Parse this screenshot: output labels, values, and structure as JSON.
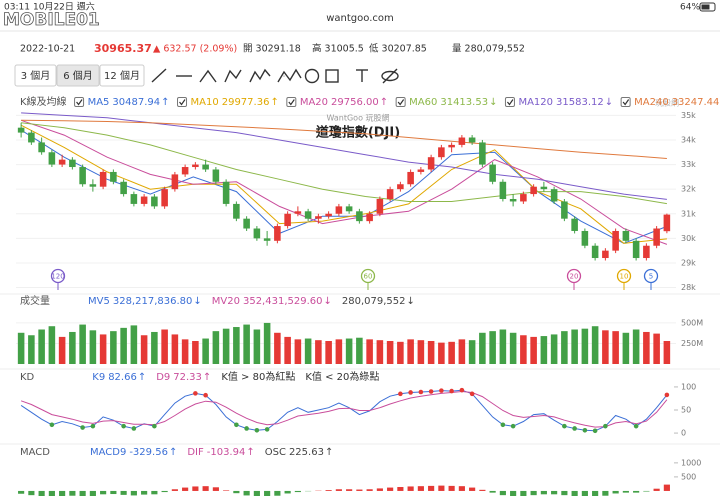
{
  "status_bar": {
    "time": "03:11",
    "date": "10月22日 週六",
    "url": "wantgoo.com",
    "battery": "64%",
    "watermark": "MOBILE01"
  },
  "quote": {
    "date": "2022-10-21",
    "price": "30965.37",
    "change": "▲ 632.57 (2.09%)",
    "open": "開 30291.18",
    "high": "高 31005.5",
    "low": "低 30207.85",
    "volume": "量 280,079,552"
  },
  "tabs": [
    "3 個月",
    "6 個月",
    "12 個月"
  ],
  "chart_data": [
    {
      "type": "candlestick",
      "title": "道瓊指數(DJI)",
      "watermark": "WantGoo 玩股網",
      "logo_text": "玩股網",
      "legend_title": "K線及均線",
      "up_color": "#e53935",
      "down_color": "#43a047",
      "ylim": [
        27900,
        35300
      ],
      "yticks": [
        {
          "value": 35000,
          "label": "35k"
        },
        {
          "value": 34000,
          "label": "34k"
        },
        {
          "value": 33000,
          "label": "33k"
        },
        {
          "value": 32000,
          "label": "32k"
        },
        {
          "value": 31000,
          "label": "31k"
        },
        {
          "value": 30000,
          "label": "30k"
        },
        {
          "value": 29000,
          "label": "29k"
        },
        {
          "value": 28000,
          "label": "28k"
        }
      ],
      "grid": true,
      "candles": [
        [
          34500,
          34700,
          34100,
          34300
        ],
        [
          34300,
          34400,
          33800,
          33900
        ],
        [
          33900,
          34100,
          33400,
          33500
        ],
        [
          33500,
          33600,
          32900,
          33000
        ],
        [
          33000,
          33400,
          32900,
          33200
        ],
        [
          33200,
          33300,
          32800,
          32900
        ],
        [
          32900,
          33000,
          32100,
          32200
        ],
        [
          32200,
          32400,
          31900,
          32100
        ],
        [
          32100,
          32800,
          32000,
          32700
        ],
        [
          32700,
          32800,
          32200,
          32300
        ],
        [
          32300,
          32400,
          31700,
          31800
        ],
        [
          31800,
          31900,
          31300,
          31400
        ],
        [
          31400,
          31800,
          31300,
          31700
        ],
        [
          31700,
          31800,
          31200,
          31300
        ],
        [
          31300,
          32100,
          31200,
          32000
        ],
        [
          32000,
          32700,
          31900,
          32600
        ],
        [
          32600,
          33000,
          32500,
          32900
        ],
        [
          32900,
          33100,
          32800,
          33000
        ],
        [
          33000,
          33200,
          32700,
          32800
        ],
        [
          32800,
          32900,
          32200,
          32300
        ],
        [
          32300,
          32400,
          31300,
          31400
        ],
        [
          31400,
          31500,
          30700,
          30800
        ],
        [
          30800,
          30900,
          30300,
          30400
        ],
        [
          30400,
          30500,
          29900,
          30000
        ],
        [
          30000,
          30300,
          29700,
          29900
        ],
        [
          29900,
          30600,
          29800,
          30500
        ],
        [
          30500,
          31100,
          30400,
          31000
        ],
        [
          31000,
          31300,
          30900,
          31100
        ],
        [
          31100,
          31200,
          30700,
          30800
        ],
        [
          30800,
          31000,
          30600,
          30900
        ],
        [
          30900,
          31100,
          30800,
          31000
        ],
        [
          31000,
          31400,
          30900,
          31300
        ],
        [
          31300,
          31400,
          31000,
          31100
        ],
        [
          31100,
          31200,
          30600,
          30700
        ],
        [
          30700,
          31100,
          30600,
          31000
        ],
        [
          31000,
          31700,
          30900,
          31600
        ],
        [
          31600,
          32100,
          31500,
          32000
        ],
        [
          32000,
          32300,
          31900,
          32200
        ],
        [
          32200,
          32800,
          32100,
          32700
        ],
        [
          32700,
          32900,
          32600,
          32800
        ],
        [
          32800,
          33400,
          32700,
          33300
        ],
        [
          33300,
          33800,
          33200,
          33700
        ],
        [
          33700,
          33900,
          33500,
          33800
        ],
        [
          33800,
          34200,
          33700,
          34100
        ],
        [
          34100,
          34200,
          33800,
          33900
        ],
        [
          33900,
          34000,
          32900,
          33000
        ],
        [
          33000,
          33100,
          32200,
          32300
        ],
        [
          32300,
          32400,
          31500,
          31600
        ],
        [
          31600,
          31800,
          31300,
          31500
        ],
        [
          31500,
          31900,
          31400,
          31800
        ],
        [
          31800,
          32200,
          31700,
          32100
        ],
        [
          32100,
          32300,
          31900,
          32000
        ],
        [
          32000,
          32100,
          31400,
          31500
        ],
        [
          31500,
          31600,
          30700,
          30800
        ],
        [
          30800,
          30900,
          30200,
          30300
        ],
        [
          30300,
          30400,
          29600,
          29700
        ],
        [
          29700,
          29800,
          29100,
          29200
        ],
        [
          29200,
          29600,
          29100,
          29500
        ],
        [
          29500,
          30400,
          29400,
          30300
        ],
        [
          30300,
          30400,
          29800,
          29900
        ],
        [
          29900,
          30000,
          29100,
          29200
        ],
        [
          29200,
          29800,
          29100,
          29700
        ],
        [
          29700,
          30500,
          29600,
          30400
        ],
        [
          30291.18,
          31005.5,
          30207.85,
          30965.37
        ]
      ],
      "series": [
        {
          "name": "MA5",
          "color": "#3b6fd6",
          "legend_value": "30487.94",
          "trend": "↑",
          "values": [
            34400,
            33300,
            32400,
            31800,
            32500,
            31900,
            30200,
            30900,
            30900,
            31900,
            33400,
            33500,
            31900,
            30700,
            29800,
            30487.94
          ]
        },
        {
          "name": "MA10",
          "color": "#e0a800",
          "legend_value": "29977.36",
          "trend": "↑",
          "values": [
            34600,
            33700,
            32700,
            32000,
            32200,
            32200,
            30600,
            30700,
            31000,
            31400,
            32800,
            33600,
            31900,
            31200,
            29800,
            29977.36
          ]
        },
        {
          "name": "MA20",
          "color": "#c94d9b",
          "legend_value": "29756.00",
          "trend": "↑",
          "values": [
            34800,
            34200,
            33300,
            32600,
            32200,
            32300,
            31300,
            30600,
            30900,
            31100,
            32000,
            33200,
            32500,
            31600,
            30400,
            29756
          ]
        },
        {
          "name": "MA60",
          "color": "#8db84a",
          "legend_value": "31413.53",
          "trend": "↓",
          "values": [
            34700,
            34500,
            34200,
            33800,
            33300,
            32800,
            32400,
            32000,
            31700,
            31500,
            31500,
            31700,
            31900,
            31900,
            31700,
            31413.53
          ]
        },
        {
          "name": "MA120",
          "color": "#7a5bc9",
          "legend_value": "31583.12",
          "trend": "↓",
          "values": [
            35100,
            35000,
            34900,
            34700,
            34500,
            34300,
            34000,
            33700,
            33400,
            33100,
            32900,
            32600,
            32400,
            32100,
            31800,
            31583.12
          ]
        },
        {
          "name": "MA240",
          "color": "#e07a3e",
          "legend_value": "33247.44",
          "trend": "↓",
          "values": [
            34800,
            34780,
            34750,
            34700,
            34620,
            34540,
            34450,
            34350,
            34250,
            34100,
            33950,
            33800,
            33650,
            33500,
            33380,
            33247.44
          ]
        }
      ],
      "period_markers": [
        {
          "label": "120",
          "color": "#7a5bc9"
        },
        {
          "label": "60",
          "color": "#8db84a"
        },
        {
          "label": "20",
          "color": "#c94d9b"
        },
        {
          "label": "10",
          "color": "#e0a800"
        },
        {
          "label": "5",
          "color": "#3b6fd6"
        }
      ]
    },
    {
      "type": "bar",
      "title": "成交量",
      "legend": [
        {
          "name": "MV5",
          "value": "328,217,836.80",
          "trend": "↓",
          "color": "#3b6fd6"
        },
        {
          "name": "MV20",
          "value": "352,431,529.60",
          "trend": "↓",
          "color": "#c94d9b"
        },
        {
          "value": "280,079,552",
          "trend": "↓",
          "color": "#444444"
        }
      ],
      "ylim": [
        0,
        560
      ],
      "yticks": [
        {
          "value": 500,
          "label": "500M"
        },
        {
          "value": 250,
          "label": "250M"
        }
      ],
      "values": [
        380,
        350,
        420,
        460,
        330,
        390,
        480,
        410,
        360,
        400,
        440,
        470,
        350,
        390,
        420,
        360,
        300,
        280,
        310,
        400,
        430,
        450,
        480,
        420,
        500,
        380,
        330,
        300,
        310,
        290,
        280,
        300,
        310,
        320,
        300,
        290,
        280,
        270,
        300,
        290,
        280,
        260,
        270,
        300,
        290,
        380,
        400,
        420,
        380,
        350,
        330,
        340,
        360,
        400,
        420,
        430,
        460,
        410,
        400,
        380,
        420,
        390,
        370,
        280.08
      ]
    },
    {
      "type": "line",
      "title": "KD",
      "notes": [
        "K值 > 80為紅點",
        "K值 < 20為綠點"
      ],
      "thresholds": {
        "high": 80,
        "low": 20,
        "high_color": "#e53935",
        "low_color": "#43a047"
      },
      "ylim": [
        -15,
        115
      ],
      "yticks": [
        100,
        50,
        0
      ],
      "series": [
        {
          "name": "K9",
          "color": "#3b6fd6",
          "legend_value": "82.66",
          "trend": "↑",
          "values": [
            60,
            45,
            30,
            18,
            25,
            20,
            12,
            15,
            35,
            28,
            15,
            10,
            20,
            15,
            40,
            65,
            80,
            86,
            82,
            62,
            35,
            18,
            10,
            6,
            8,
            25,
            45,
            55,
            45,
            50,
            55,
            65,
            55,
            40,
            48,
            68,
            80,
            85,
            88,
            89,
            90,
            92,
            91,
            93,
            85,
            60,
            35,
            18,
            15,
            25,
            40,
            42,
            28,
            15,
            10,
            6,
            5,
            15,
            38,
            30,
            15,
            30,
            55,
            82.66
          ]
        },
        {
          "name": "D9",
          "color": "#c94d9b",
          "legend_value": "72.33",
          "trend": "↑",
          "values": [
            70,
            62,
            51,
            40,
            35,
            30,
            24,
            21,
            26,
            27,
            23,
            19,
            19,
            18,
            25,
            38,
            52,
            63,
            69,
            67,
            56,
            43,
            32,
            23,
            18,
            20,
            28,
            37,
            40,
            43,
            47,
            53,
            54,
            49,
            49,
            55,
            63,
            70,
            76,
            80,
            83,
            86,
            88,
            90,
            88,
            79,
            64,
            49,
            38,
            34,
            36,
            38,
            35,
            28,
            22,
            17,
            13,
            14,
            22,
            25,
            20,
            26,
            45,
            72.33
          ]
        }
      ]
    },
    {
      "type": "bar",
      "title": "MACD",
      "legend": [
        {
          "name": "MACD9",
          "value": "-329.56",
          "trend": "↑",
          "color": "#3b6fd6"
        },
        {
          "name": "DIF",
          "value": "-103.94",
          "trend": "↑",
          "color": "#c94d9b"
        },
        {
          "name": "OSC",
          "value": "225.63",
          "trend": "↑",
          "color": "#444444"
        }
      ],
      "pos_color": "#e53935",
      "neg_color": "#43a047",
      "ylim": [
        -180,
        1280
      ],
      "yticks": [
        1000,
        500
      ],
      "values": [
        -100,
        -150,
        -200,
        -220,
        -180,
        -170,
        -200,
        -190,
        -120,
        -110,
        -140,
        -160,
        -130,
        -120,
        -40,
        60,
        120,
        160,
        170,
        130,
        20,
        -80,
        -160,
        -220,
        -230,
        -170,
        -90,
        -40,
        -10,
        10,
        30,
        60,
        60,
        50,
        60,
        90,
        120,
        140,
        160,
        170,
        180,
        190,
        180,
        170,
        120,
        40,
        -60,
        -150,
        -190,
        -180,
        -150,
        -120,
        -120,
        -150,
        -180,
        -210,
        -220,
        -170,
        -90,
        -60,
        -60,
        -20,
        80,
        225.63
      ]
    }
  ]
}
